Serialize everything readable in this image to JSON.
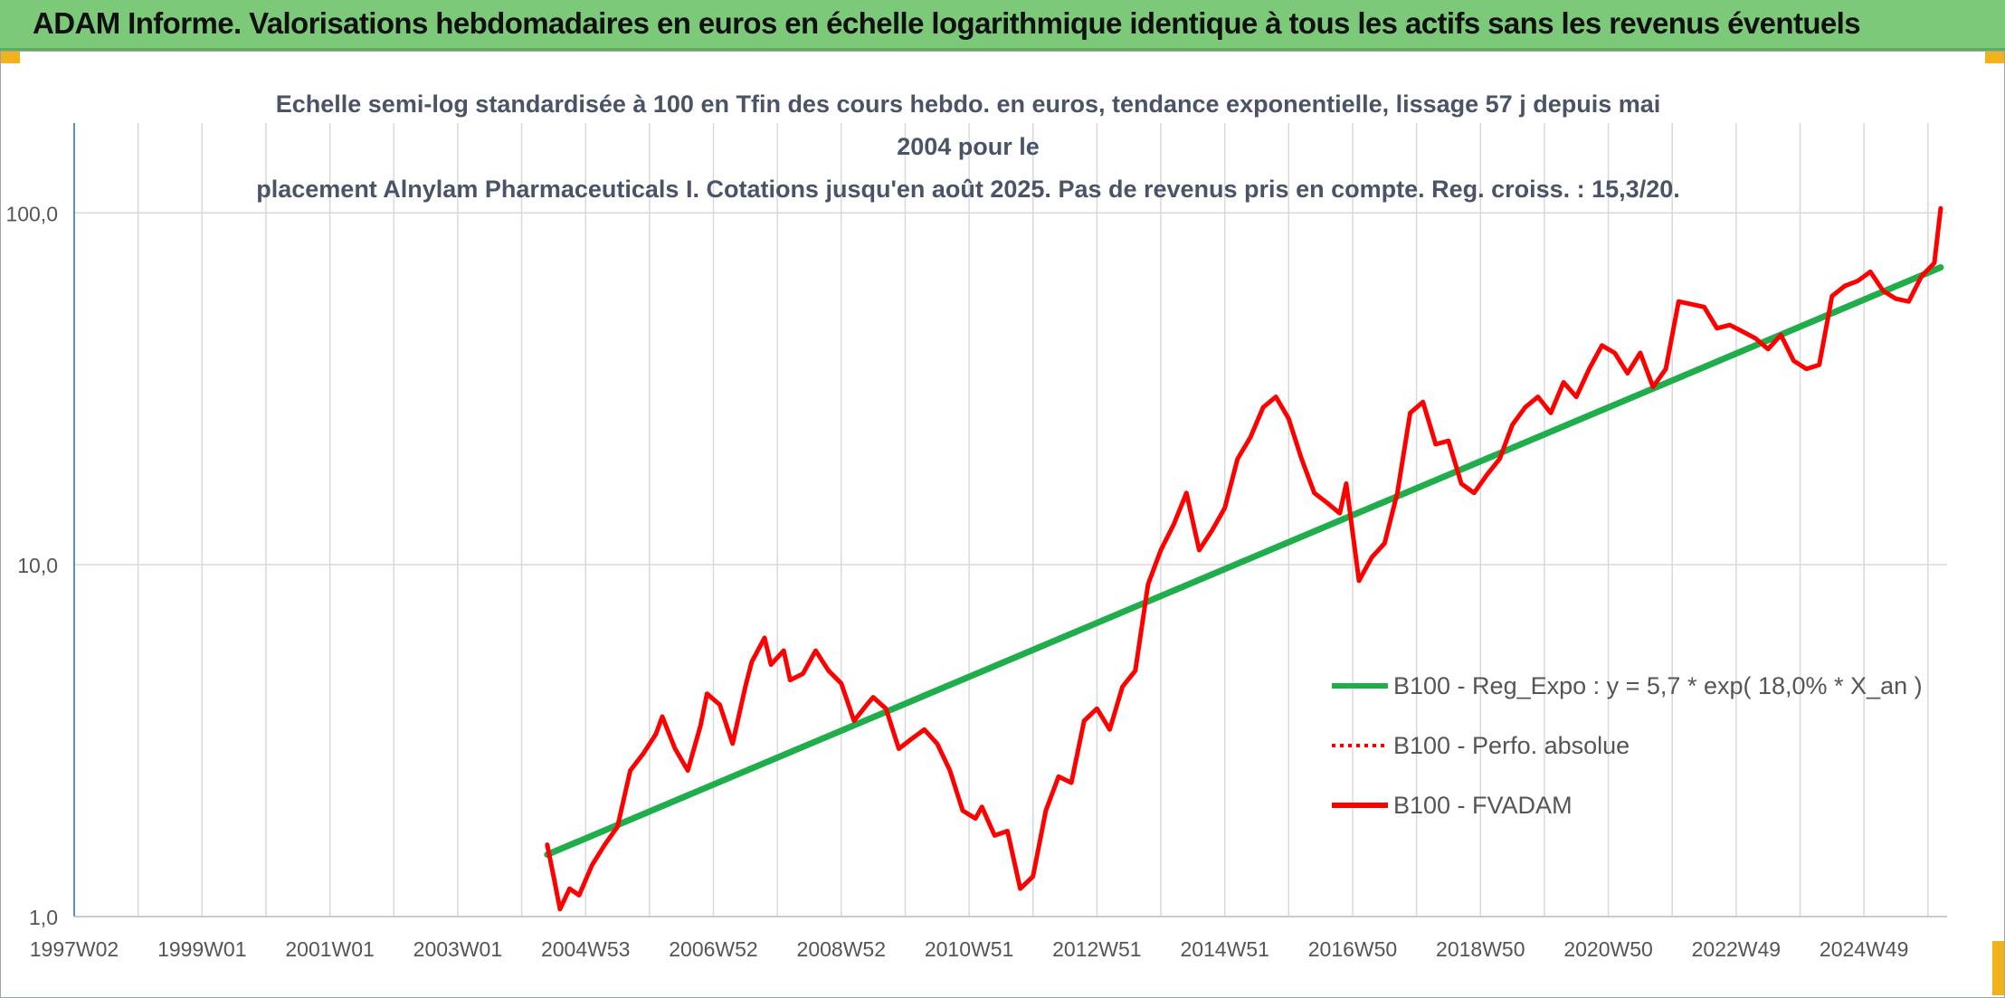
{
  "header": {
    "title": "ADAM Informe. Valorisations hebdomadaires en euros en échelle logarithmique identique à tous les actifs sans les revenus éventuels"
  },
  "colors": {
    "banner": "#7dc97a",
    "trend": "#1fae4b",
    "price": "#ff0000",
    "grid": "#d9d9d9",
    "accent": "#f2b21b"
  },
  "chart_data": {
    "type": "line",
    "title": "Echelle semi-log standardisée à 100 en Tfin des cours hebdo. en euros, tendance exponentielle, lissage 57 j depuis mai 2004 pour le placement Alnylam Pharmaceuticals I. Cotations jusqu'en août 2025. Pas de revenus pris en compte. Reg. croiss. : 15,3/20.",
    "title_lines": [
      "Echelle semi-log standardisée à 100 en Tfin des cours hebdo. en euros, tendance exponentielle, lissage 57 j depuis mai 2004 pour le",
      "placement Alnylam Pharmaceuticals I. Cotations jusqu'en août 2025. Pas de revenus pris en compte. Reg. croiss. : 15,3/20."
    ],
    "y_scale": "log",
    "ylim": [
      1,
      180
    ],
    "xlim": [
      1997.0,
      2026.3
    ],
    "y_ticks": [
      1,
      10,
      100
    ],
    "y_tick_labels": [
      "1,0",
      "10,0",
      "100,0"
    ],
    "x_ticks": [
      1997.0,
      1999.0,
      2001.0,
      2003.0,
      2005.0,
      2007.0,
      2009.0,
      2011.0,
      2013.0,
      2015.0,
      2017.0,
      2019.0,
      2021.0,
      2023.0,
      2025.0
    ],
    "x_tick_labels": [
      "1997W02",
      "1999W01",
      "2001W01",
      "2003W01",
      "2004W53",
      "2006W52",
      "2008W52",
      "2010W51",
      "2012W51",
      "2014W51",
      "2016W50",
      "2018W50",
      "2020W50",
      "2022W49",
      "2024W49"
    ],
    "grid": true,
    "legend_position": "right",
    "series": [
      {
        "name": "B100 - Reg_Expo : y = 5,7 * exp( 18,0% *  X_an )",
        "style": "solid",
        "color": "#1fae4b",
        "x": [
          2004.4,
          2026.2
        ],
        "y": [
          1.5,
          70
        ]
      },
      {
        "name": "B100 - Perfo. absolue",
        "style": "dotted",
        "color": "#ff0000",
        "x": [],
        "y": []
      },
      {
        "name": "B100 - FVADAM",
        "style": "solid",
        "color": "#ff0000",
        "x": [
          2004.4,
          2004.5,
          2004.6,
          2004.75,
          2004.9,
          2005.1,
          2005.3,
          2005.5,
          2005.7,
          2005.9,
          2006.1,
          2006.2,
          2006.4,
          2006.6,
          2006.8,
          2006.9,
          2007.1,
          2007.3,
          2007.5,
          2007.6,
          2007.8,
          2007.9,
          2008.1,
          2008.2,
          2008.4,
          2008.6,
          2008.8,
          2009.0,
          2009.2,
          2009.4,
          2009.5,
          2009.7,
          2009.9,
          2010.1,
          2010.3,
          2010.5,
          2010.7,
          2010.9,
          2011.1,
          2011.2,
          2011.4,
          2011.6,
          2011.8,
          2012.0,
          2012.2,
          2012.4,
          2012.6,
          2012.8,
          2013.0,
          2013.2,
          2013.4,
          2013.6,
          2013.8,
          2014.0,
          2014.2,
          2014.4,
          2014.6,
          2014.8,
          2015.0,
          2015.2,
          2015.4,
          2015.6,
          2015.8,
          2016.0,
          2016.2,
          2016.4,
          2016.6,
          2016.8,
          2016.9,
          2017.1,
          2017.3,
          2017.5,
          2017.7,
          2017.9,
          2018.1,
          2018.3,
          2018.5,
          2018.7,
          2018.9,
          2019.1,
          2019.3,
          2019.5,
          2019.7,
          2019.9,
          2020.1,
          2020.3,
          2020.5,
          2020.7,
          2020.9,
          2021.1,
          2021.3,
          2021.5,
          2021.7,
          2021.9,
          2022.1,
          2022.3,
          2022.5,
          2022.7,
          2022.9,
          2023.1,
          2023.3,
          2023.5,
          2023.7,
          2023.9,
          2024.1,
          2024.3,
          2024.5,
          2024.7,
          2024.9,
          2025.1,
          2025.3,
          2025.5,
          2025.7,
          2025.9,
          2026.1,
          2026.2
        ],
        "y": [
          1.6,
          1.3,
          1.05,
          1.2,
          1.15,
          1.4,
          1.6,
          1.8,
          2.6,
          2.9,
          3.3,
          3.7,
          3.0,
          2.6,
          3.5,
          4.3,
          4.0,
          3.1,
          4.5,
          5.3,
          6.2,
          5.2,
          5.7,
          4.7,
          4.9,
          5.7,
          5.0,
          4.6,
          3.6,
          4.0,
          4.2,
          3.9,
          3.0,
          3.2,
          3.4,
          3.1,
          2.6,
          2.0,
          1.9,
          2.05,
          1.7,
          1.75,
          1.2,
          1.3,
          2.0,
          2.5,
          2.4,
          3.6,
          3.9,
          3.4,
          4.5,
          5.0,
          8.8,
          11.0,
          13.0,
          16.0,
          11.0,
          12.5,
          14.5,
          20.0,
          23.0,
          28.0,
          30.0,
          26.0,
          20.0,
          16.0,
          15.0,
          14.0,
          17.0,
          9.0,
          10.5,
          11.5,
          16.0,
          27.0,
          29.0,
          22.0,
          22.5,
          17.0,
          16.0,
          18.0,
          20.0,
          25.0,
          28.0,
          30.0,
          27.0,
          33.0,
          30.0,
          36.0,
          42.0,
          40.0,
          35.0,
          40.0,
          32.0,
          36.0,
          56.0,
          55.0,
          54.0,
          47.0,
          48.0,
          46.0,
          44.0,
          41.0,
          45.0,
          38.0,
          36.0,
          37.0,
          58.0,
          62.0,
          64.0,
          68.0,
          60.0,
          57.0,
          56.0,
          66.0,
          72.0,
          103.0
        ]
      }
    ]
  }
}
